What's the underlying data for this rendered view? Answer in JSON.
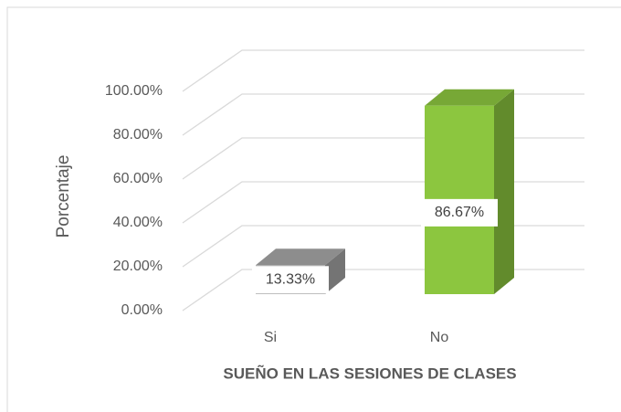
{
  "chart_data": {
    "type": "bar3d",
    "x_label": "SUEÑO EN LAS SESIONES DE CLASES",
    "y_label": "Porcentaje",
    "categories": [
      "Si",
      "No"
    ],
    "values": [
      13.33,
      86.67
    ],
    "value_labels": [
      "13.33%",
      "86.67%"
    ],
    "colors": [
      "#a6a6a6",
      "#8cc63f"
    ],
    "ylim": [
      0,
      100
    ],
    "yticks": [
      {
        "value": 0,
        "label": "0.00%"
      },
      {
        "value": 20,
        "label": "20.00%"
      },
      {
        "value": 40,
        "label": "40.00%"
      },
      {
        "value": 60,
        "label": "60.00%"
      },
      {
        "value": 80,
        "label": "80.00%"
      },
      {
        "value": 100,
        "label": "100.00%"
      }
    ],
    "grid": true
  }
}
